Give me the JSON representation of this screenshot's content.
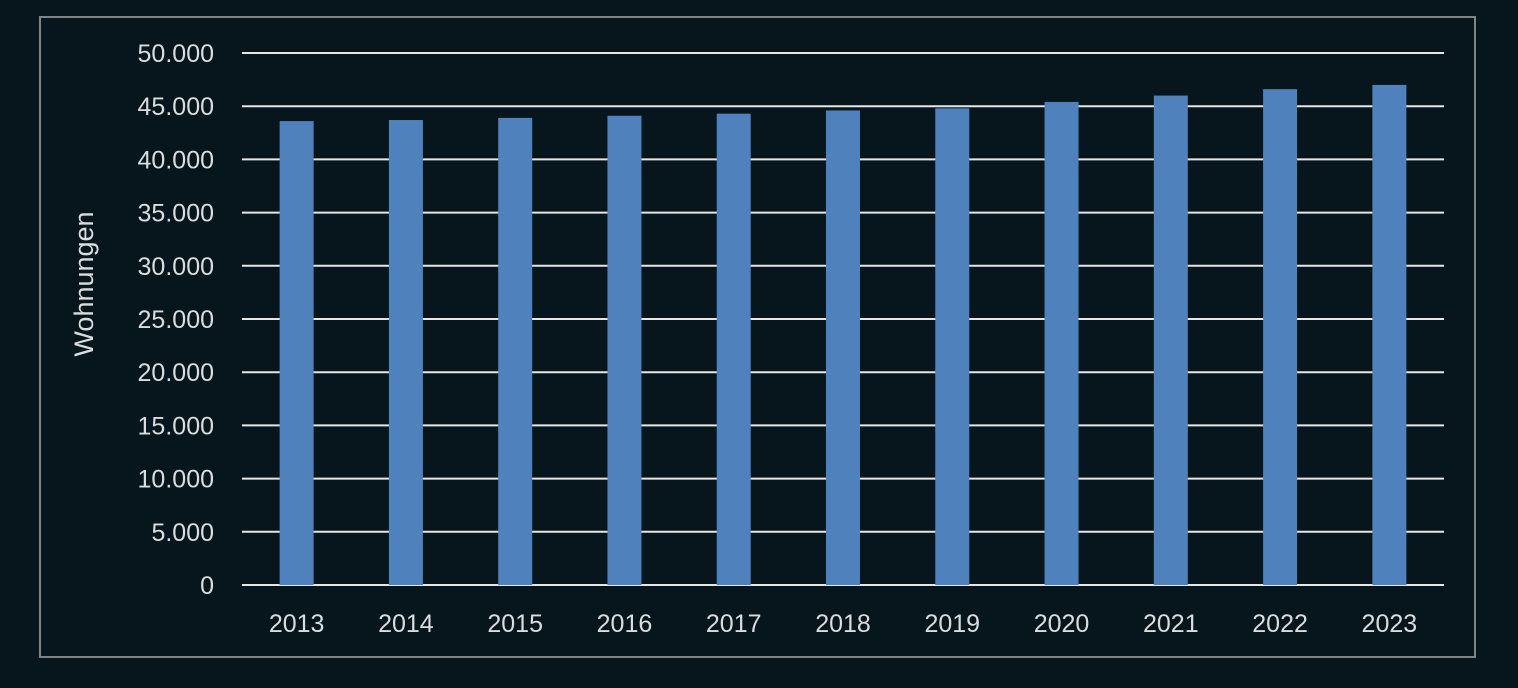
{
  "chart_data": {
    "type": "bar",
    "title": "",
    "xlabel": "",
    "ylabel": "Wohnungen",
    "categories": [
      "2013",
      "2014",
      "2015",
      "2016",
      "2017",
      "2018",
      "2019",
      "2020",
      "2021",
      "2022",
      "2023"
    ],
    "values": [
      43600,
      43700,
      43900,
      44100,
      44300,
      44600,
      44800,
      45400,
      46000,
      46600,
      47000
    ],
    "ylim": [
      0,
      50000
    ],
    "yticks": [
      0,
      5000,
      10000,
      15000,
      20000,
      25000,
      30000,
      35000,
      40000,
      45000,
      50000
    ],
    "ytick_labels": [
      "0",
      "5.000",
      "10.000",
      "15.000",
      "20.000",
      "25.000",
      "30.000",
      "35.000",
      "40.000",
      "45.000",
      "50.000"
    ],
    "grid": true,
    "legend": "none",
    "colors": {
      "bar": "#4f81bd",
      "grid": "#e6e6e6",
      "background": "#06161c",
      "text": "#d9dde0",
      "frame": "#7d8589"
    }
  }
}
